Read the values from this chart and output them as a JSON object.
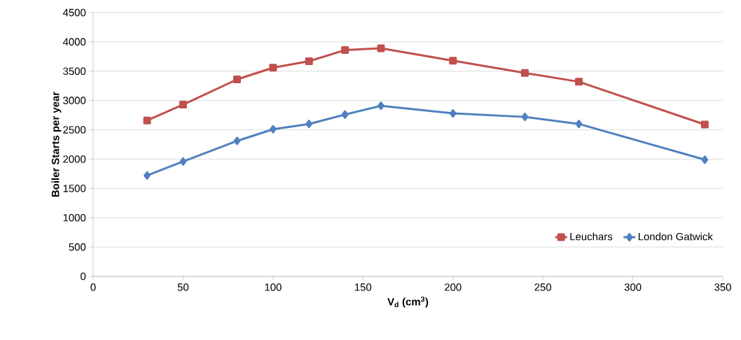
{
  "chart_data": {
    "type": "line",
    "xlabel": "V$_{d}$ (cm$^{3}$)",
    "ylabel": "Boiler Starts per year",
    "x": [
      30,
      50,
      80,
      100,
      120,
      140,
      160,
      200,
      240,
      270,
      340
    ],
    "series": [
      {
        "name": "Leuchars",
        "color": "#c0504d",
        "marker": "square",
        "values": [
          2660,
          2930,
          3360,
          3560,
          3670,
          3860,
          3890,
          3680,
          3470,
          3320,
          2590
        ]
      },
      {
        "name": "London Gatwick",
        "color": "#4f81bd",
        "marker": "diamond",
        "values": [
          1720,
          1960,
          2310,
          2510,
          2600,
          2760,
          2910,
          2780,
          2720,
          2600,
          1990
        ]
      }
    ],
    "xlim": [
      0,
      350
    ],
    "xticks": [
      0,
      50,
      100,
      150,
      200,
      250,
      300,
      350
    ],
    "ylim": [
      0,
      4500
    ],
    "yticks": [
      0,
      500,
      1000,
      1500,
      2000,
      2500,
      3000,
      3500,
      4000,
      4500
    ],
    "grid": "y",
    "legend": "bottom right",
    "line_style": "solid"
  }
}
